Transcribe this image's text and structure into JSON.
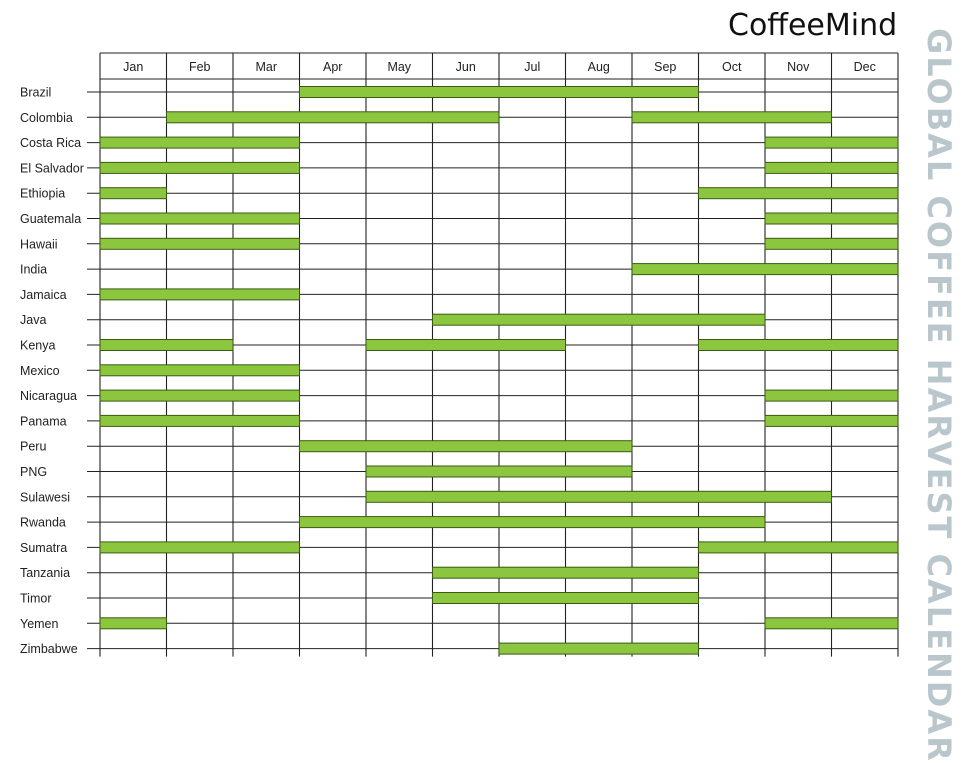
{
  "logo": "CoffeeMind",
  "side_title": "GLOBAL COFFEE HARVEST CALENDAR",
  "chart_data": {
    "type": "gantt",
    "title": "GLOBAL COFFEE HARVEST CALENDAR",
    "months": [
      "Jan",
      "Feb",
      "Mar",
      "Apr",
      "May",
      "Jun",
      "Jul",
      "Aug",
      "Sep",
      "Oct",
      "Nov",
      "Dec"
    ],
    "bar_color": "#8cc63f",
    "bar_stroke": "#3a5a12",
    "grid_color": "#222222",
    "grid": true,
    "rows": [
      {
        "country": "Brazil",
        "harvest": [
          {
            "start": "Apr",
            "end": "Sep"
          }
        ]
      },
      {
        "country": "Colombia",
        "harvest": [
          {
            "start": "Feb",
            "end": "Jun"
          },
          {
            "start": "Sep",
            "end": "Nov"
          }
        ]
      },
      {
        "country": "Costa Rica",
        "harvest": [
          {
            "start": "Jan",
            "end": "Mar"
          },
          {
            "start": "Nov",
            "end": "Dec"
          }
        ]
      },
      {
        "country": "El Salvador",
        "harvest": [
          {
            "start": "Jan",
            "end": "Mar"
          },
          {
            "start": "Nov",
            "end": "Dec"
          }
        ]
      },
      {
        "country": "Ethiopia",
        "harvest": [
          {
            "start": "Jan",
            "end": "Jan"
          },
          {
            "start": "Oct",
            "end": "Dec"
          }
        ]
      },
      {
        "country": "Guatemala",
        "harvest": [
          {
            "start": "Jan",
            "end": "Mar"
          },
          {
            "start": "Nov",
            "end": "Dec"
          }
        ]
      },
      {
        "country": "Hawaii",
        "harvest": [
          {
            "start": "Jan",
            "end": "Mar"
          },
          {
            "start": "Nov",
            "end": "Dec"
          }
        ]
      },
      {
        "country": "India",
        "harvest": [
          {
            "start": "Sep",
            "end": "Dec"
          }
        ]
      },
      {
        "country": "Jamaica",
        "harvest": [
          {
            "start": "Jan",
            "end": "Mar"
          }
        ]
      },
      {
        "country": "Java",
        "harvest": [
          {
            "start": "Jun",
            "end": "Oct"
          }
        ]
      },
      {
        "country": "Kenya",
        "harvest": [
          {
            "start": "Jan",
            "end": "Feb"
          },
          {
            "start": "May",
            "end": "Jul"
          },
          {
            "start": "Oct",
            "end": "Dec"
          }
        ]
      },
      {
        "country": "Mexico",
        "harvest": [
          {
            "start": "Jan",
            "end": "Mar"
          }
        ]
      },
      {
        "country": "Nicaragua",
        "harvest": [
          {
            "start": "Jan",
            "end": "Mar"
          },
          {
            "start": "Nov",
            "end": "Dec"
          }
        ]
      },
      {
        "country": "Panama",
        "harvest": [
          {
            "start": "Jan",
            "end": "Mar"
          },
          {
            "start": "Nov",
            "end": "Dec"
          }
        ]
      },
      {
        "country": "Peru",
        "harvest": [
          {
            "start": "Apr",
            "end": "Aug"
          }
        ]
      },
      {
        "country": "PNG",
        "harvest": [
          {
            "start": "May",
            "end": "Aug"
          }
        ]
      },
      {
        "country": "Sulawesi",
        "harvest": [
          {
            "start": "May",
            "end": "Nov"
          }
        ]
      },
      {
        "country": "Rwanda",
        "harvest": [
          {
            "start": "Apr",
            "end": "Oct"
          }
        ]
      },
      {
        "country": "Sumatra",
        "harvest": [
          {
            "start": "Jan",
            "end": "Mar"
          },
          {
            "start": "Oct",
            "end": "Dec"
          }
        ]
      },
      {
        "country": "Tanzania",
        "harvest": [
          {
            "start": "Jun",
            "end": "Sep"
          }
        ]
      },
      {
        "country": "Timor",
        "harvest": [
          {
            "start": "Jun",
            "end": "Sep"
          }
        ]
      },
      {
        "country": "Yemen",
        "harvest": [
          {
            "start": "Jan",
            "end": "Jan"
          },
          {
            "start": "Nov",
            "end": "Dec"
          }
        ]
      },
      {
        "country": "Zimbabwe",
        "harvest": [
          {
            "start": "Jul",
            "end": "Sep"
          }
        ]
      }
    ]
  }
}
